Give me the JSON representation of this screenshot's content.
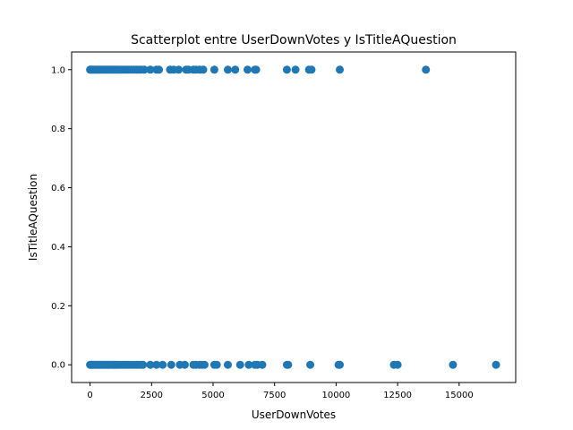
{
  "chart_data": {
    "type": "scatter",
    "title": "Scatterplot entre UserDownVotes y IsTitleAQuestion",
    "xlabel": "UserDownVotes",
    "ylabel": "IsTitleAQuestion",
    "xlim": [
      -750,
      17300
    ],
    "ylim": [
      -0.06,
      1.06
    ],
    "xticks": [
      0,
      2500,
      5000,
      7500,
      10000,
      12500,
      15000
    ],
    "yticks": [
      0.0,
      0.2,
      0.4,
      0.6,
      0.8,
      1.0
    ],
    "xtick_labels": [
      "0",
      "2500",
      "5000",
      "7500",
      "10000",
      "12500",
      "15000"
    ],
    "ytick_labels": [
      "0.0",
      "0.2",
      "0.4",
      "0.6",
      "0.8",
      "1.0"
    ],
    "grid": false,
    "marker_color": "#1f77b4",
    "series": [
      {
        "values": [
          [
            0,
            1
          ],
          [
            40,
            1
          ],
          [
            80,
            1
          ],
          [
            130,
            1
          ],
          [
            180,
            1
          ],
          [
            230,
            1
          ],
          [
            290,
            1
          ],
          [
            350,
            1
          ],
          [
            410,
            1
          ],
          [
            470,
            1
          ],
          [
            530,
            1
          ],
          [
            600,
            1
          ],
          [
            660,
            1
          ],
          [
            720,
            1
          ],
          [
            790,
            1
          ],
          [
            860,
            1
          ],
          [
            930,
            1
          ],
          [
            1000,
            1
          ],
          [
            1070,
            1
          ],
          [
            1150,
            1
          ],
          [
            1230,
            1
          ],
          [
            1310,
            1
          ],
          [
            1400,
            1
          ],
          [
            1490,
            1
          ],
          [
            1580,
            1
          ],
          [
            1680,
            1
          ],
          [
            1780,
            1
          ],
          [
            1880,
            1
          ],
          [
            1980,
            1
          ],
          [
            2080,
            1
          ],
          [
            2200,
            1
          ],
          [
            2450,
            1
          ],
          [
            2700,
            1
          ],
          [
            2800,
            1
          ],
          [
            3250,
            1
          ],
          [
            3400,
            1
          ],
          [
            3600,
            1
          ],
          [
            3900,
            1
          ],
          [
            4000,
            1
          ],
          [
            4200,
            1
          ],
          [
            4300,
            1
          ],
          [
            4450,
            1
          ],
          [
            4600,
            1
          ],
          [
            5050,
            1
          ],
          [
            5600,
            1
          ],
          [
            5900,
            1
          ],
          [
            6400,
            1
          ],
          [
            6700,
            1
          ],
          [
            6750,
            1
          ],
          [
            8000,
            1
          ],
          [
            8350,
            1
          ],
          [
            8900,
            1
          ],
          [
            9000,
            1
          ],
          [
            10150,
            1
          ],
          [
            13650,
            1
          ],
          [
            0,
            0
          ],
          [
            40,
            0
          ],
          [
            80,
            0
          ],
          [
            130,
            0
          ],
          [
            180,
            0
          ],
          [
            230,
            0
          ],
          [
            290,
            0
          ],
          [
            350,
            0
          ],
          [
            410,
            0
          ],
          [
            470,
            0
          ],
          [
            530,
            0
          ],
          [
            600,
            0
          ],
          [
            660,
            0
          ],
          [
            720,
            0
          ],
          [
            790,
            0
          ],
          [
            860,
            0
          ],
          [
            930,
            0
          ],
          [
            1000,
            0
          ],
          [
            1070,
            0
          ],
          [
            1150,
            0
          ],
          [
            1230,
            0
          ],
          [
            1310,
            0
          ],
          [
            1400,
            0
          ],
          [
            1490,
            0
          ],
          [
            1580,
            0
          ],
          [
            1680,
            0
          ],
          [
            1780,
            0
          ],
          [
            1880,
            0
          ],
          [
            1980,
            0
          ],
          [
            2080,
            0
          ],
          [
            2150,
            0
          ],
          [
            2450,
            0
          ],
          [
            2700,
            0
          ],
          [
            2950,
            0
          ],
          [
            3300,
            0
          ],
          [
            3650,
            0
          ],
          [
            3850,
            0
          ],
          [
            4200,
            0
          ],
          [
            4300,
            0
          ],
          [
            4450,
            0
          ],
          [
            4550,
            0
          ],
          [
            4650,
            0
          ],
          [
            5050,
            0
          ],
          [
            5150,
            0
          ],
          [
            5600,
            0
          ],
          [
            6100,
            0
          ],
          [
            6450,
            0
          ],
          [
            6700,
            0
          ],
          [
            6800,
            0
          ],
          [
            7000,
            0
          ],
          [
            8000,
            0
          ],
          [
            8050,
            0
          ],
          [
            8950,
            0
          ],
          [
            10100,
            0
          ],
          [
            10150,
            0
          ],
          [
            12350,
            0
          ],
          [
            12500,
            0
          ],
          [
            14750,
            0
          ],
          [
            16500,
            0
          ]
        ]
      }
    ]
  }
}
